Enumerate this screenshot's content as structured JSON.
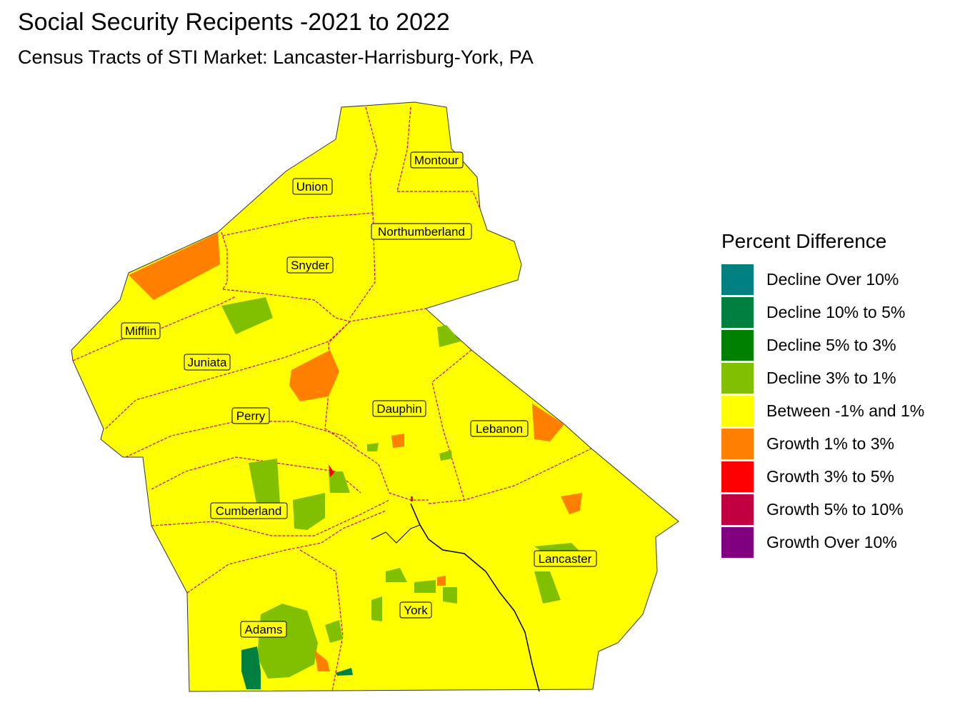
{
  "title": "Social Security Recipents -2021 to 2022",
  "subtitle": "Census Tracts of STI Market: Lancaster-Harrisburg-York, PA",
  "legend": {
    "title": "Percent Difference",
    "items": [
      {
        "label": "Decline Over 10%",
        "color": "#008080"
      },
      {
        "label": "Decline 10% to 5%",
        "color": "#008040"
      },
      {
        "label": "Decline 5% to 3%",
        "color": "#008000"
      },
      {
        "label": "Decline 3% to 1%",
        "color": "#80c000"
      },
      {
        "label": "Between -1% and 1%",
        "color": "#ffff00"
      },
      {
        "label": "Growth 1% to 3%",
        "color": "#ff8000"
      },
      {
        "label": "Growth 3% to 5%",
        "color": "#ff0000"
      },
      {
        "label": "Growth 5% to 10%",
        "color": "#c00040"
      },
      {
        "label": "Growth Over 10%",
        "color": "#800080"
      }
    ]
  },
  "counties": [
    {
      "name": "Union"
    },
    {
      "name": "Montour"
    },
    {
      "name": "Northumberland"
    },
    {
      "name": "Snyder"
    },
    {
      "name": "Mifflin"
    },
    {
      "name": "Juniata"
    },
    {
      "name": "Perry"
    },
    {
      "name": "Dauphin"
    },
    {
      "name": "Lebanon"
    },
    {
      "name": "Cumberland"
    },
    {
      "name": "Lancaster"
    },
    {
      "name": "York"
    },
    {
      "name": "Adams"
    }
  ],
  "colors": {
    "base": "#ffff00",
    "boundary": "#d0006f",
    "river": "#000000"
  }
}
